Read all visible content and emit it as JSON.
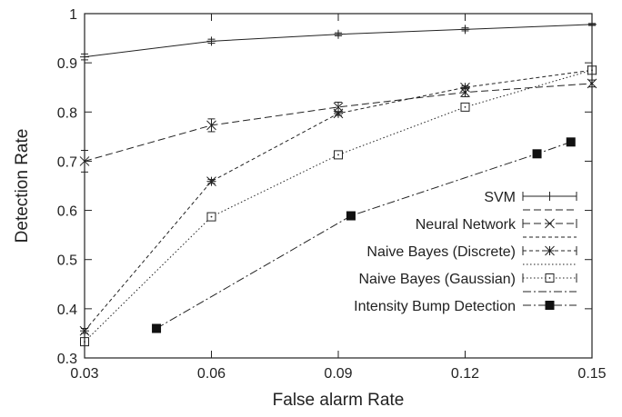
{
  "chart_data": {
    "type": "line",
    "xlabel": "False alarm Rate",
    "ylabel": "Detection Rate",
    "xlim": [
      0.03,
      0.15
    ],
    "ylim": [
      0.3,
      1.0
    ],
    "x_ticks": [
      "0.03",
      "0.06",
      "0.09",
      "0.12",
      "0.15"
    ],
    "y_ticks": [
      "0.3",
      "0.4",
      "0.5",
      "0.6",
      "0.7",
      "0.8",
      "0.9",
      "1"
    ],
    "grid": false,
    "legend_position": "bottom-right",
    "series": [
      {
        "name": "SVM",
        "marker": "plus",
        "dash": "solid",
        "x": [
          0.03,
          0.06,
          0.09,
          0.12,
          0.15
        ],
        "y": [
          0.912,
          0.944,
          0.958,
          0.968,
          0.978
        ],
        "err": [
          0.006,
          0.004,
          0.003,
          0.003,
          0.002
        ]
      },
      {
        "name": "Neural Network",
        "marker": "x",
        "dash": "dashed",
        "x": [
          0.03,
          0.06,
          0.09,
          0.12,
          0.15
        ],
        "y": [
          0.7,
          0.773,
          0.81,
          0.84,
          0.858
        ],
        "err": [
          0.022,
          0.013,
          0.01,
          0.009,
          0.007
        ]
      },
      {
        "name": "Naive Bayes (Discrete)",
        "marker": "asterisk",
        "dash": "short-dashed",
        "x": [
          0.03,
          0.06,
          0.09,
          0.12,
          0.15
        ],
        "y": [
          0.355,
          0.659,
          0.797,
          0.85,
          0.885
        ],
        "err": [
          0.005,
          0.004,
          0.004,
          0.003,
          0.003
        ]
      },
      {
        "name": "Naive Bayes (Gaussian)",
        "marker": "square-open",
        "dash": "dotted",
        "x": [
          0.03,
          0.06,
          0.09,
          0.12,
          0.15
        ],
        "y": [
          0.333,
          0.587,
          0.713,
          0.81,
          0.885
        ],
        "err": [
          0.004,
          0.004,
          0.004,
          0.004,
          0.003
        ]
      },
      {
        "name": "Intensity Bump Detection",
        "marker": "square-filled",
        "dash": "dash-dot",
        "x": [
          0.047,
          0.093,
          0.137,
          0.145
        ],
        "y": [
          0.36,
          0.589,
          0.715,
          0.739
        ],
        "err": []
      }
    ]
  }
}
